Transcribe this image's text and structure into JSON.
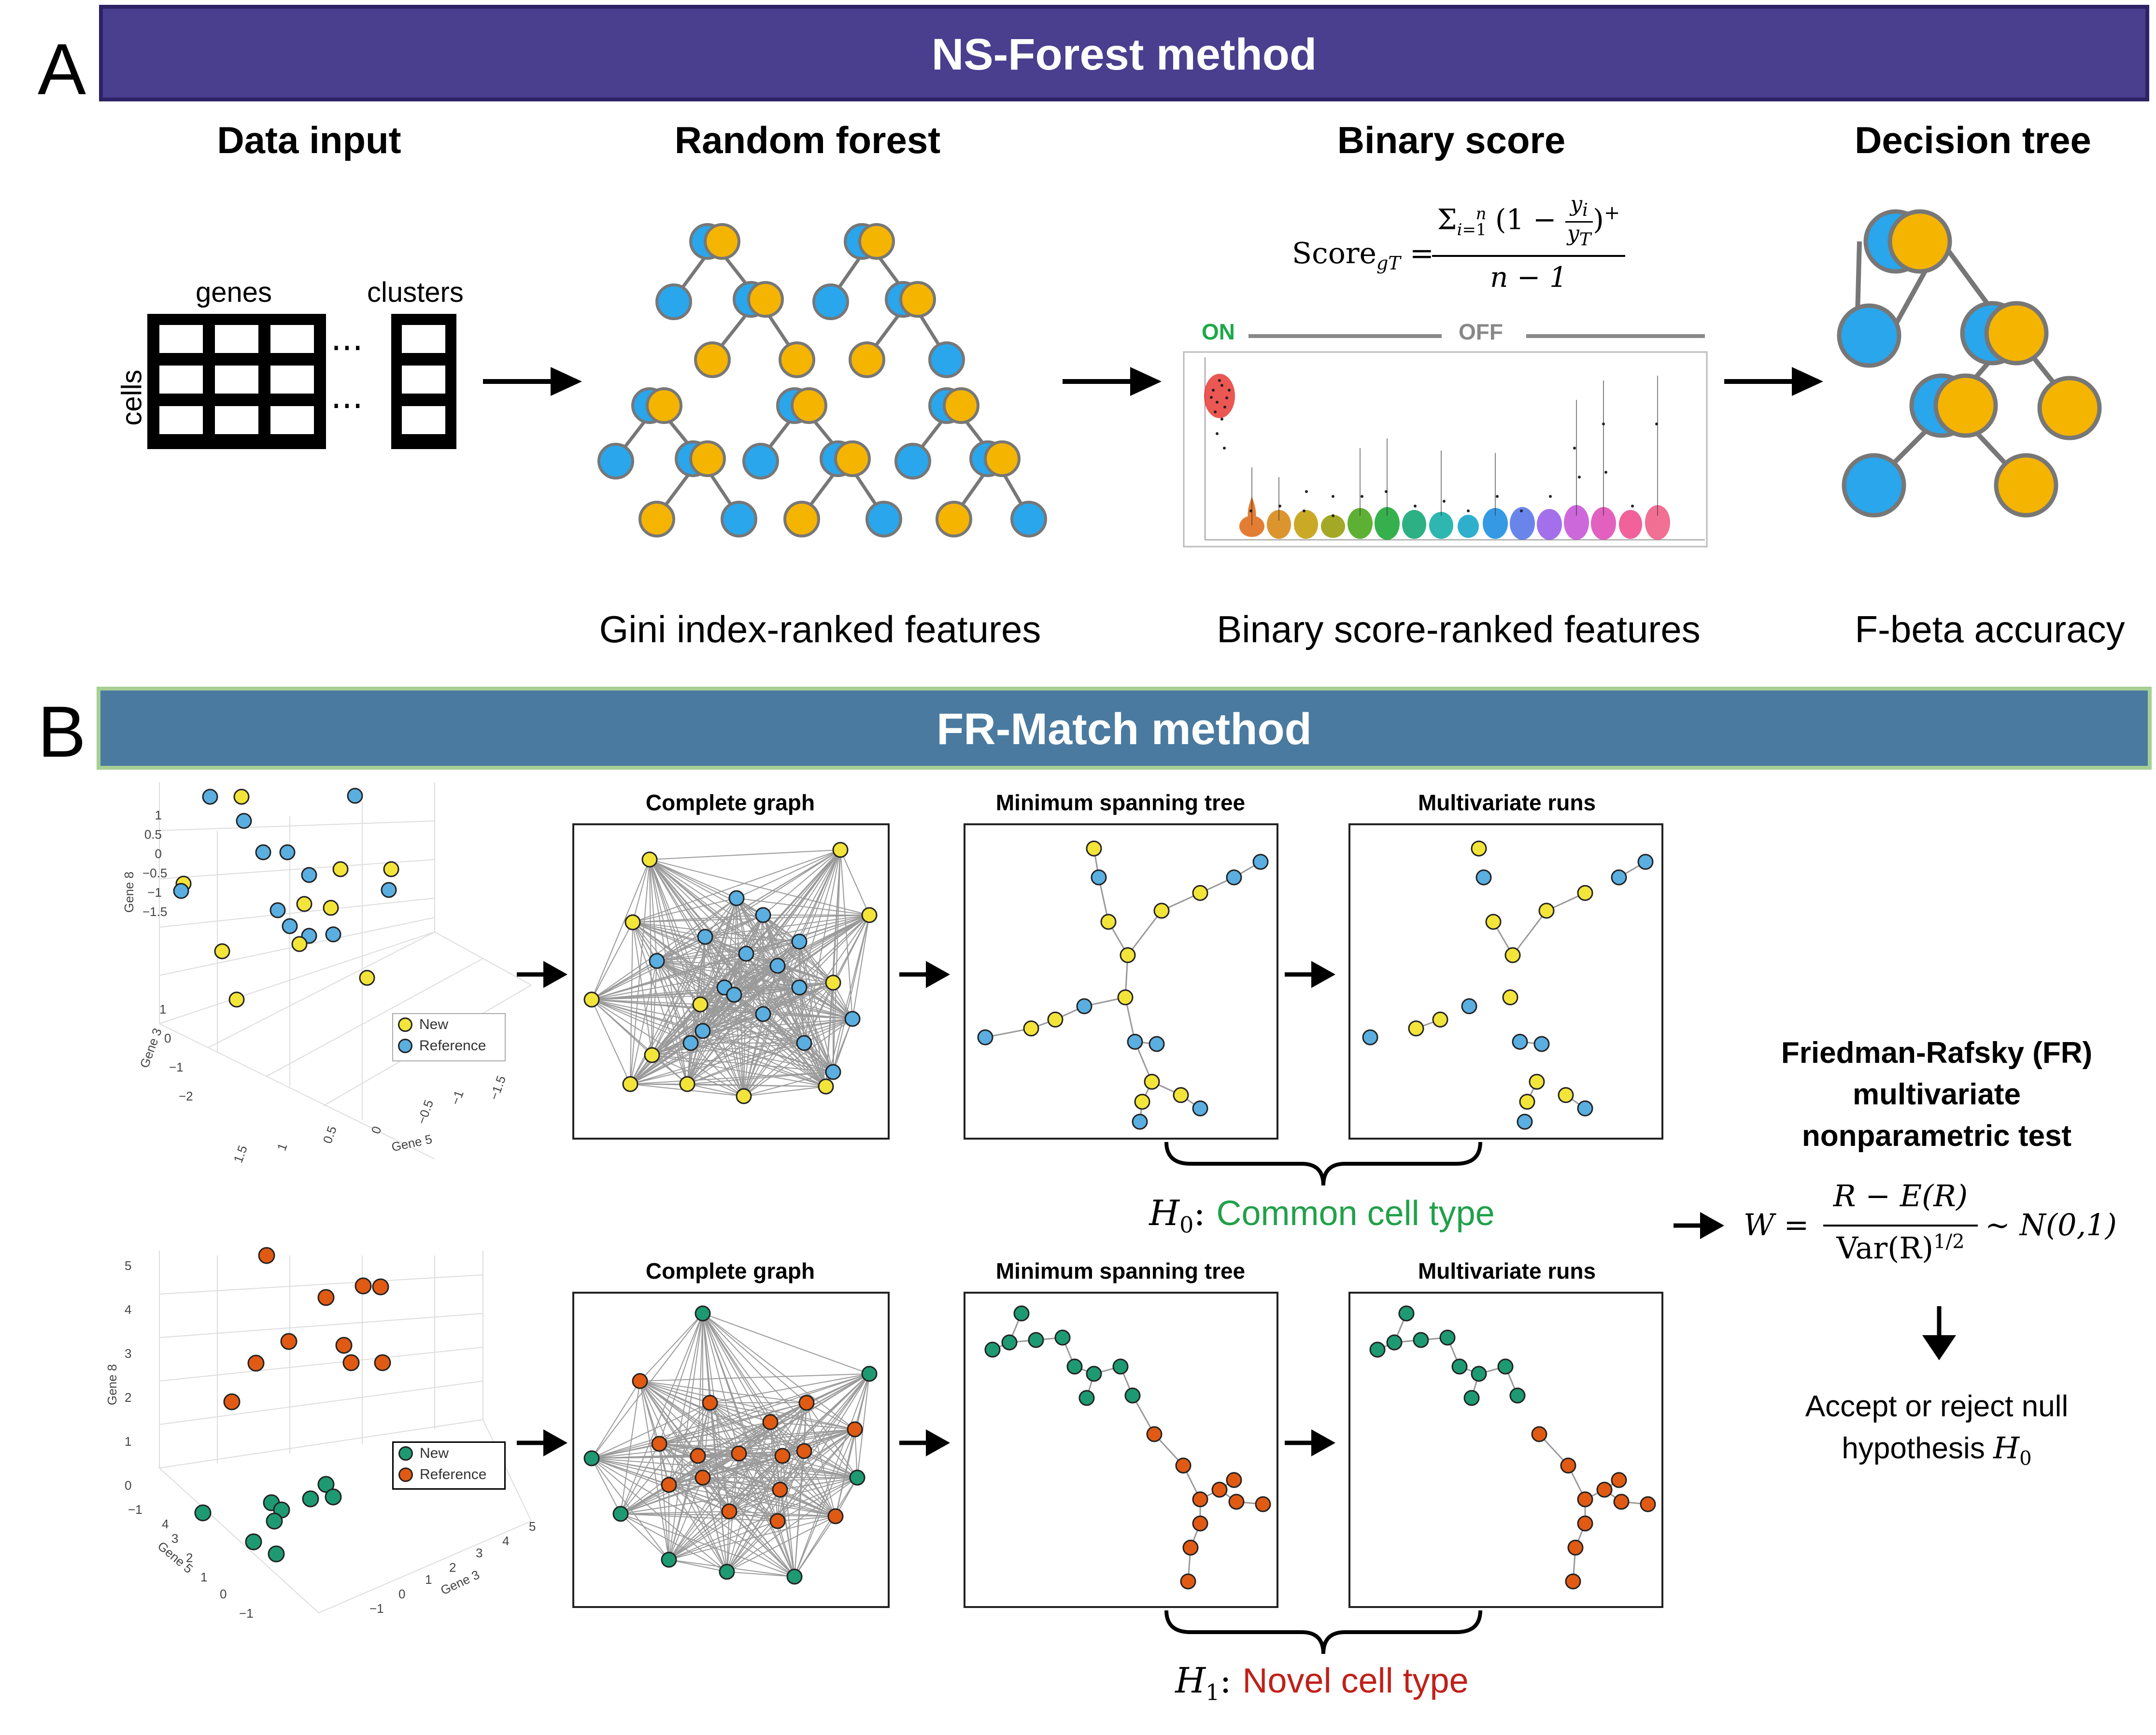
{
  "panelA": {
    "letter": "A",
    "banner": "NS-Forest method",
    "stages": {
      "data_input": "Data input",
      "random_forest": "Random forest",
      "binary_score": "Binary score",
      "decision_tree": "Decision tree"
    },
    "matrix_labels": {
      "genes": "genes",
      "clusters": "clusters",
      "cells": "cells"
    },
    "formula": {
      "lhs": "Score",
      "sub": "gT",
      "numerator": "Σ",
      "denominator": "n − 1"
    },
    "on_label": "ON",
    "off_label": "OFF",
    "captions": {
      "gini": "Gini index-ranked features",
      "binary": "Binary score-ranked features",
      "fbeta": "F-beta accuracy"
    }
  },
  "panelB": {
    "letter": "B",
    "banner": "FR-Match method",
    "row_titles": {
      "complete": "Complete graph",
      "mst": "Minimum spanning tree",
      "runs": "Multivariate runs"
    },
    "scatter_top": {
      "legend": [
        "New",
        "Reference"
      ],
      "gene8_label": "Gene 8",
      "gene3_label": "Gene 3",
      "gene5_label": "Gene 5",
      "y_ticks": [
        "1",
        "0.5",
        "0",
        "−0.5",
        "−1",
        "−1.5"
      ],
      "z_ticks": [
        "1",
        "0",
        "−1",
        "−2"
      ],
      "x_ticks": [
        "1.5",
        "1",
        "0.5",
        "0",
        "−0.5",
        "−1",
        "−1.5"
      ]
    },
    "scatter_bottom": {
      "legend": [
        "New",
        "Reference"
      ],
      "gene8_label": "Gene 8",
      "gene5_label": "Gene 5",
      "gene3_label": "Gene 3",
      "y_ticks": [
        "5",
        "4",
        "3",
        "2",
        "1",
        "0"
      ],
      "left_ticks": [
        "−1",
        "4",
        "3",
        "2",
        "1",
        "0",
        "−1"
      ],
      "right_ticks": [
        "5",
        "4",
        "3",
        "2",
        "1",
        "0",
        "−1"
      ]
    },
    "h0": {
      "symbol": "H",
      "sub": "0",
      "text": "Common cell type"
    },
    "h1": {
      "symbol": "H",
      "sub": "1",
      "text": "Novel cell type"
    },
    "fr_test": {
      "title_lines": [
        "Friedman-Rafsky (FR)",
        "multivariate",
        "nonparametric test"
      ],
      "formula_lhs": "W =",
      "formula_num": "R − E(R)",
      "formula_den": "Var(R)",
      "formula_exp": "1/2",
      "formula_rhs": "~ N(0,1)",
      "decision_lines": [
        "Accept or reject null",
        "hypothesis"
      ],
      "decision_symbol": "H",
      "decision_sub": "0"
    }
  },
  "colors": {
    "banner_a": "#4a3e8e",
    "banner_a_border": "#2e2266",
    "banner_b": "#4a7aa0",
    "banner_b_border": "#a6cf94",
    "blue": "#29a6ec",
    "orange": "#f5b400",
    "yellow": "#f3e43a",
    "light_blue": "#5aaee0",
    "green": "#1e9a72",
    "red_orange": "#e05a14",
    "on_green": "#1ea84a",
    "off_gray": "#888888",
    "h0_green": "#22a04a",
    "h1_red": "#c0201a"
  }
}
